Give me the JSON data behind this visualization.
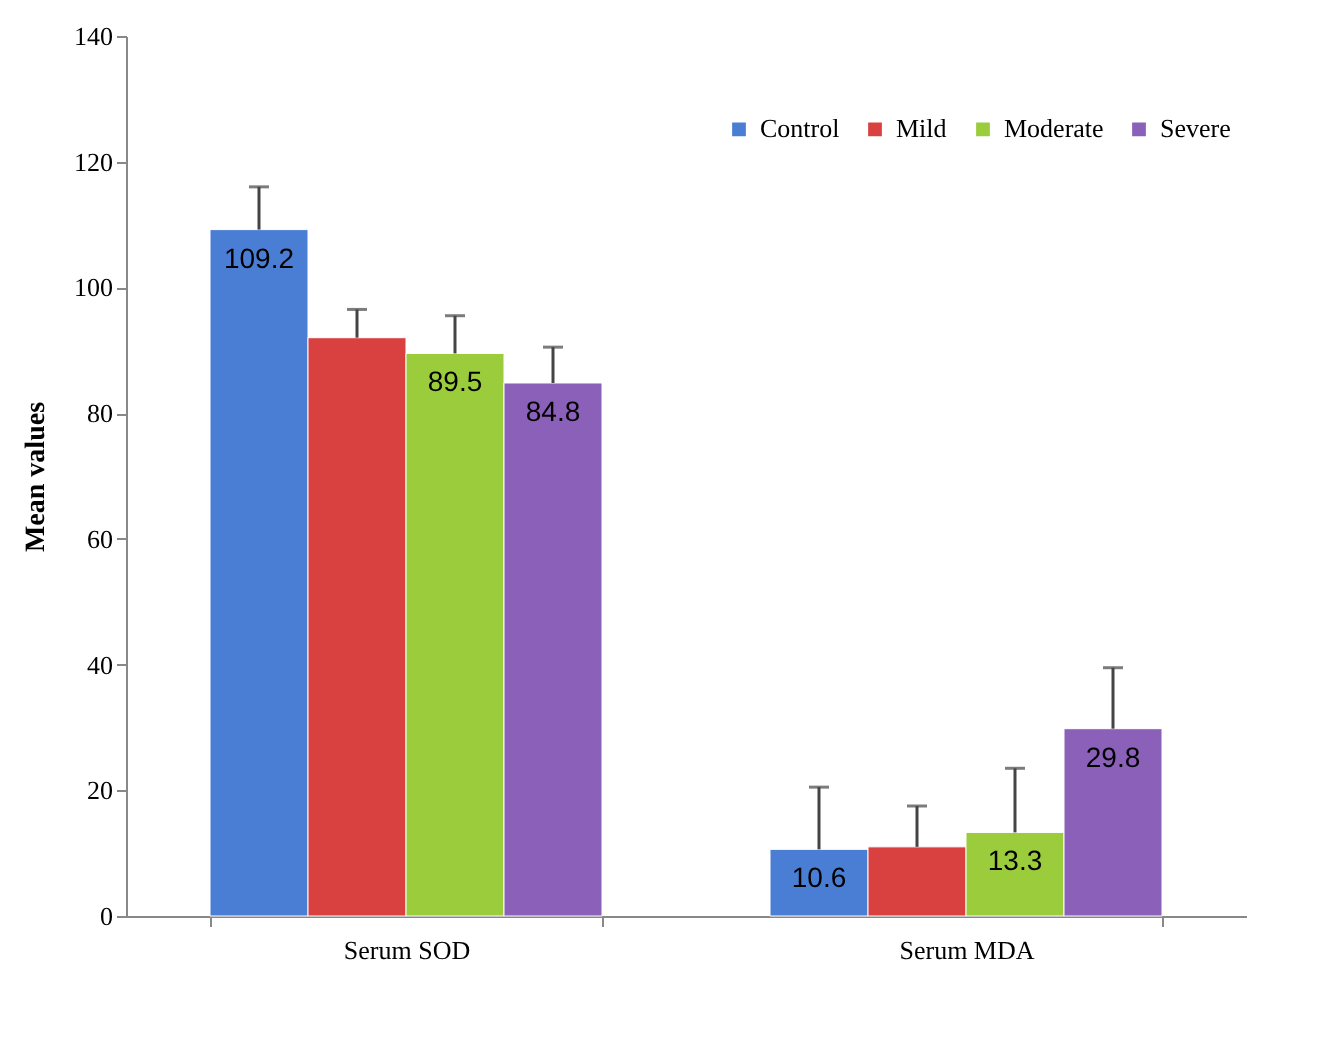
{
  "chart_data": {
    "type": "bar",
    "ylabel": "Mean values",
    "categories": [
      "Serum SOD",
      "Serum MDA"
    ],
    "series": [
      {
        "name": "Control",
        "color": "#4a7ed4",
        "values": [
          109.2,
          10.6
        ],
        "errors": [
          [
            109.2,
            116
          ],
          [
            10.6,
            20.5
          ]
        ],
        "value_labels": [
          "109.2",
          "10.6"
        ]
      },
      {
        "name": "Mild",
        "color": "#d94040",
        "values": [
          92,
          11
        ],
        "errors": [
          [
            92,
            96.5
          ],
          [
            11,
            17.5
          ]
        ],
        "value_labels": [
          null,
          null
        ]
      },
      {
        "name": "Moderate",
        "color": "#9bcc3c",
        "values": [
          89.5,
          13.3
        ],
        "errors": [
          [
            89.5,
            95.5
          ],
          [
            13.3,
            23.5
          ]
        ],
        "value_labels": [
          "89.5",
          "13.3"
        ]
      },
      {
        "name": "Severe",
        "color": "#8a60b8",
        "values": [
          84.8,
          29.8
        ],
        "errors": [
          [
            84.8,
            90.5
          ],
          [
            29.8,
            39.5
          ]
        ],
        "value_labels": [
          "84.8",
          "29.8"
        ]
      }
    ],
    "ylim": [
      0,
      140
    ],
    "yticks": [
      0,
      20,
      40,
      60,
      80,
      100,
      120,
      140
    ],
    "grid": false,
    "legend": "top right"
  }
}
